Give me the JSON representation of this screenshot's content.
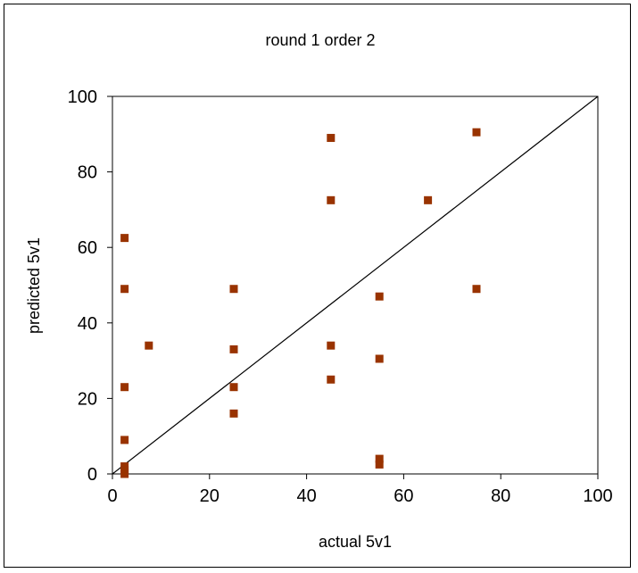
{
  "chart_data": {
    "type": "scatter",
    "title": "round 1 order 2",
    "xlabel": "actual 5v1",
    "ylabel": "predicted 5v1",
    "xlim": [
      0,
      100
    ],
    "ylim": [
      0,
      100
    ],
    "xticks": [
      0,
      20,
      40,
      60,
      80,
      100
    ],
    "yticks": [
      0,
      20,
      40,
      60,
      80,
      100
    ],
    "grid": false,
    "reference_line": {
      "from": [
        0,
        0
      ],
      "to": [
        100,
        100
      ]
    },
    "marker_color": "#993300",
    "points": [
      {
        "x": 2.5,
        "y": 62.5
      },
      {
        "x": 2.5,
        "y": 49
      },
      {
        "x": 2.5,
        "y": 23
      },
      {
        "x": 2.5,
        "y": 9
      },
      {
        "x": 2.5,
        "y": 2
      },
      {
        "x": 2.5,
        "y": 1
      },
      {
        "x": 2.5,
        "y": 0
      },
      {
        "x": 7.5,
        "y": 34
      },
      {
        "x": 25,
        "y": 49
      },
      {
        "x": 25,
        "y": 33
      },
      {
        "x": 25,
        "y": 23
      },
      {
        "x": 25,
        "y": 16
      },
      {
        "x": 45,
        "y": 89
      },
      {
        "x": 45,
        "y": 72.5
      },
      {
        "x": 45,
        "y": 34
      },
      {
        "x": 45,
        "y": 25
      },
      {
        "x": 55,
        "y": 47
      },
      {
        "x": 55,
        "y": 30.5
      },
      {
        "x": 55,
        "y": 4
      },
      {
        "x": 55,
        "y": 2.5
      },
      {
        "x": 65,
        "y": 72.5
      },
      {
        "x": 75,
        "y": 90.5
      },
      {
        "x": 75,
        "y": 49
      }
    ]
  }
}
